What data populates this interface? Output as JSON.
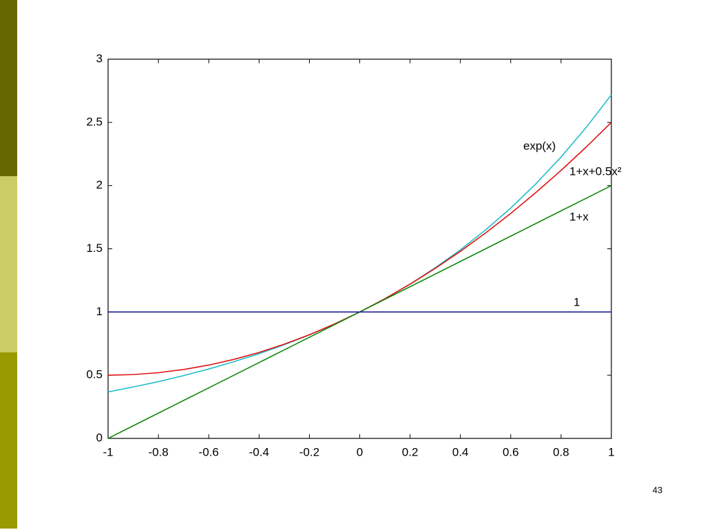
{
  "chart_data": {
    "type": "line",
    "x": [
      -1,
      -0.9,
      -0.8,
      -0.7,
      -0.6,
      -0.5,
      -0.4,
      -0.3,
      -0.2,
      -0.1,
      0,
      0.1,
      0.2,
      0.3,
      0.4,
      0.5,
      0.6,
      0.7,
      0.8,
      0.9,
      1
    ],
    "series": [
      {
        "name": "exp(x)",
        "color": "#20bcc8",
        "values": [
          0.368,
          0.407,
          0.449,
          0.497,
          0.549,
          0.607,
          0.67,
          0.741,
          0.819,
          0.905,
          1,
          1.105,
          1.221,
          1.35,
          1.492,
          1.649,
          1.822,
          2.014,
          2.226,
          2.46,
          2.718
        ]
      },
      {
        "name": "1+x+0.5x²",
        "color": "#e01010",
        "values": [
          0.5,
          0.505,
          0.52,
          0.545,
          0.58,
          0.625,
          0.68,
          0.745,
          0.82,
          0.905,
          1,
          1.105,
          1.22,
          1.345,
          1.48,
          1.625,
          1.78,
          1.945,
          2.12,
          2.305,
          2.5
        ]
      },
      {
        "name": "1+x",
        "color": "#0a8a0a",
        "values": [
          0,
          0.1,
          0.2,
          0.3,
          0.4,
          0.5,
          0.6,
          0.7,
          0.8,
          0.9,
          1,
          1.1,
          1.2,
          1.3,
          1.4,
          1.5,
          1.6,
          1.7,
          1.8,
          1.9,
          2
        ]
      },
      {
        "name": "1",
        "color": "#1a1a90",
        "values": [
          1,
          1,
          1,
          1,
          1,
          1,
          1,
          1,
          1,
          1,
          1,
          1,
          1,
          1,
          1,
          1,
          1,
          1,
          1,
          1,
          1
        ]
      }
    ],
    "xlim": [
      -1,
      1
    ],
    "ylim": [
      0,
      3
    ],
    "xticks": [
      -1,
      -0.8,
      -0.6,
      -0.4,
      -0.2,
      0,
      0.2,
      0.4,
      0.6,
      0.8,
      1
    ],
    "yticks": [
      0,
      0.5,
      1,
      1.5,
      2,
      2.5,
      3
    ]
  },
  "page_number": "43"
}
